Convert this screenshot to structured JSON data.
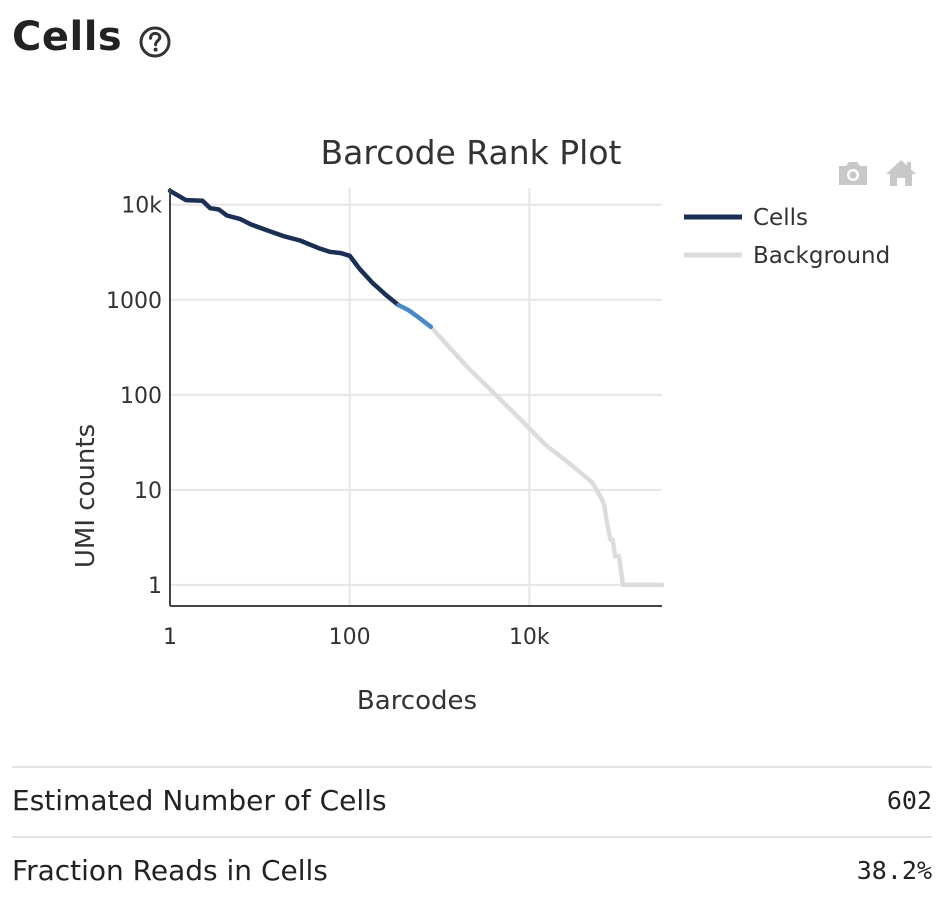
{
  "section": {
    "title": "Cells",
    "help_icon": "question-circle-icon"
  },
  "modebar": {
    "icons": [
      "camera-icon",
      "home-icon"
    ],
    "icon_color": "#c8c8c8"
  },
  "chart_data": {
    "type": "line",
    "title": "Barcode Rank Plot",
    "xlabel": "Barcodes",
    "ylabel": "UMI counts",
    "x_scale": "log",
    "y_scale": "log",
    "xlim": [
      1,
      300000
    ],
    "ylim": [
      0.6,
      15000
    ],
    "x_ticks": [
      {
        "value": 1,
        "label": "1"
      },
      {
        "value": 100,
        "label": "100"
      },
      {
        "value": 10000,
        "label": "10k"
      }
    ],
    "y_ticks": [
      {
        "value": 1,
        "label": "1"
      },
      {
        "value": 10,
        "label": "10"
      },
      {
        "value": 100,
        "label": "100"
      },
      {
        "value": 1000,
        "label": "1000"
      },
      {
        "value": 10000,
        "label": "10k"
      }
    ],
    "grid": true,
    "legend_position": "right",
    "series": [
      {
        "name": "Cells",
        "color": "#1b2f55",
        "points": [
          [
            1,
            14000
          ],
          [
            1.5,
            11200
          ],
          [
            2.3,
            11000
          ],
          [
            2.8,
            9200
          ],
          [
            3.5,
            8900
          ],
          [
            4.3,
            7700
          ],
          [
            6,
            7100
          ],
          [
            8,
            6200
          ],
          [
            12,
            5400
          ],
          [
            18,
            4700
          ],
          [
            28,
            4200
          ],
          [
            45,
            3500
          ],
          [
            60,
            3200
          ],
          [
            80,
            3100
          ],
          [
            100,
            2900
          ],
          [
            130,
            2100
          ],
          [
            180,
            1500
          ],
          [
            260,
            1100
          ],
          [
            350,
            880
          ]
        ]
      },
      {
        "name": "Cells",
        "color": "#4a88c6",
        "showlegend": false,
        "points": [
          [
            350,
            880
          ],
          [
            450,
            780
          ],
          [
            600,
            640
          ],
          [
            800,
            520
          ]
        ]
      },
      {
        "name": "Background",
        "color": "#dcdcdc",
        "points": [
          [
            800,
            520
          ],
          [
            1200,
            340
          ],
          [
            2000,
            200
          ],
          [
            4000,
            105
          ],
          [
            8000,
            55
          ],
          [
            15000,
            30
          ],
          [
            30000,
            18
          ],
          [
            50000,
            12
          ],
          [
            60000,
            9
          ],
          [
            68000,
            7
          ],
          [
            72000,
            5
          ],
          [
            80000,
            3
          ],
          [
            85000,
            3
          ],
          [
            90000,
            2
          ],
          [
            100000,
            2
          ],
          [
            110000,
            1
          ],
          [
            300000,
            1
          ]
        ]
      }
    ],
    "legend": [
      {
        "name": "Cells",
        "color": "#1b2f55"
      },
      {
        "name": "Background",
        "color": "#dcdcdc"
      }
    ]
  },
  "metrics": [
    {
      "label": "Estimated Number of Cells",
      "value": "602"
    },
    {
      "label": "Fraction Reads in Cells",
      "value": "38.2%"
    }
  ]
}
